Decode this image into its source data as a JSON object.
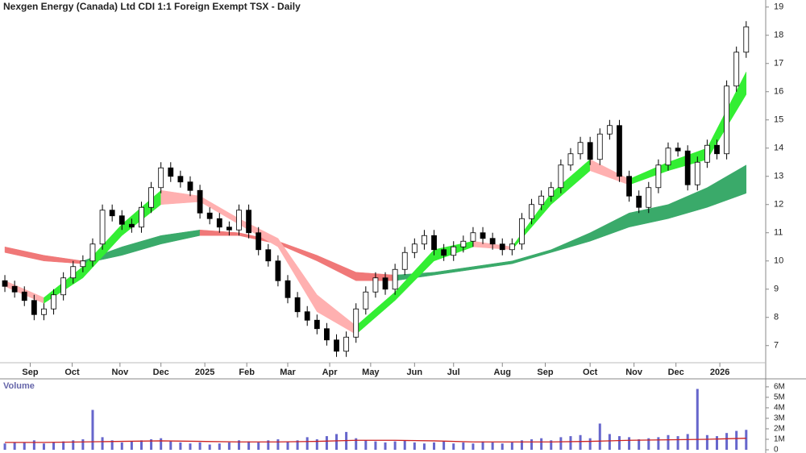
{
  "chart_data": [
    {
      "type": "candlestick",
      "title": "Nexgen Energy (Canada) Ltd CDI 1:1 Foreign Exempt TSX - Daily",
      "x": [
        0,
        1,
        2,
        3,
        4,
        5,
        6,
        7,
        8,
        9,
        10,
        11,
        12,
        13,
        14,
        15,
        16,
        17,
        18,
        19,
        20,
        21,
        22,
        23,
        24,
        25,
        26,
        27,
        28,
        29,
        30,
        31,
        32,
        33,
        34,
        35,
        36,
        37,
        38,
        39,
        40,
        41,
        42,
        43,
        44,
        45,
        46,
        47,
        48,
        49,
        50,
        51,
        52,
        53,
        54,
        55,
        56,
        57,
        58,
        59,
        60,
        61,
        62,
        63,
        64,
        65,
        66,
        67,
        68,
        69,
        70,
        71,
        72,
        73,
        74,
        75,
        76
      ],
      "open": [
        9.3,
        9.1,
        8.9,
        8.6,
        8.1,
        8.3,
        8.8,
        9.4,
        9.8,
        10.0,
        10.6,
        11.8,
        11.6,
        11.3,
        11.2,
        11.9,
        12.6,
        13.3,
        13.0,
        12.8,
        12.5,
        11.7,
        11.5,
        11.2,
        11.1,
        11.8,
        11.0,
        10.4,
        10.0,
        9.3,
        8.7,
        8.2,
        7.9,
        7.6,
        7.2,
        6.8,
        7.3,
        8.3,
        8.9,
        9.4,
        9.0,
        9.7,
        10.3,
        10.6,
        10.9,
        10.4,
        10.2,
        10.5,
        10.7,
        11.0,
        10.8,
        10.6,
        10.4,
        10.6,
        11.5,
        12.0,
        12.3,
        12.6,
        13.4,
        13.8,
        14.2,
        13.6,
        14.5,
        14.8,
        13.0,
        12.3,
        11.9,
        12.6,
        13.4,
        14.0,
        13.9,
        12.7,
        13.5,
        14.1,
        13.8,
        16.2,
        17.4
      ],
      "high": [
        9.5,
        9.3,
        9.1,
        8.8,
        8.5,
        9.0,
        9.6,
        10.0,
        10.2,
        10.8,
        12.0,
        12.0,
        11.8,
        11.5,
        12.1,
        12.8,
        13.5,
        13.5,
        13.2,
        13.0,
        12.7,
        11.9,
        11.7,
        11.4,
        12.0,
        12.0,
        11.2,
        10.6,
        10.2,
        9.5,
        8.9,
        8.4,
        8.1,
        7.8,
        7.4,
        7.5,
        8.5,
        9.1,
        9.6,
        9.6,
        9.9,
        10.5,
        10.8,
        11.1,
        11.1,
        10.6,
        10.7,
        10.9,
        11.2,
        11.2,
        11.0,
        10.8,
        10.8,
        11.7,
        12.2,
        12.5,
        12.8,
        13.6,
        14.0,
        14.4,
        14.4,
        14.7,
        15.0,
        15.0,
        13.2,
        12.5,
        12.8,
        13.6,
        14.2,
        14.2,
        14.1,
        13.7,
        14.3,
        14.3,
        16.4,
        17.6,
        18.5
      ],
      "low": [
        8.9,
        8.7,
        8.4,
        7.9,
        7.9,
        8.1,
        8.6,
        9.2,
        9.6,
        9.8,
        10.4,
        11.4,
        11.1,
        11.0,
        11.0,
        11.7,
        12.4,
        12.8,
        12.6,
        12.3,
        11.5,
        11.3,
        11.0,
        10.9,
        10.9,
        10.8,
        10.2,
        9.8,
        9.1,
        8.5,
        8.0,
        7.7,
        7.4,
        7.0,
        6.6,
        6.6,
        7.1,
        8.1,
        8.7,
        8.8,
        8.8,
        9.5,
        10.1,
        10.4,
        10.2,
        10.0,
        10.0,
        10.3,
        10.5,
        10.6,
        10.4,
        10.2,
        10.2,
        10.4,
        11.3,
        11.8,
        12.1,
        12.4,
        13.2,
        13.6,
        13.4,
        13.4,
        14.3,
        12.8,
        12.1,
        11.7,
        11.7,
        12.4,
        13.2,
        13.7,
        12.5,
        12.5,
        13.3,
        13.6,
        13.6,
        16.0,
        17.2
      ],
      "close": [
        9.1,
        8.9,
        8.6,
        8.1,
        8.3,
        8.8,
        9.4,
        9.8,
        10.0,
        10.6,
        11.8,
        11.6,
        11.3,
        11.2,
        11.9,
        12.6,
        13.3,
        13.0,
        12.8,
        12.5,
        11.7,
        11.5,
        11.2,
        11.1,
        11.8,
        11.0,
        10.4,
        10.0,
        9.3,
        8.7,
        8.2,
        7.9,
        7.6,
        7.2,
        6.8,
        7.3,
        8.3,
        8.9,
        9.4,
        9.0,
        9.7,
        10.3,
        10.6,
        10.9,
        10.4,
        10.2,
        10.5,
        10.7,
        11.0,
        10.8,
        10.6,
        10.4,
        10.6,
        11.5,
        12.0,
        12.3,
        12.6,
        13.4,
        13.8,
        14.2,
        13.6,
        14.5,
        14.8,
        13.0,
        12.3,
        11.9,
        12.6,
        13.4,
        14.0,
        13.9,
        12.7,
        13.5,
        14.1,
        13.8,
        16.2,
        17.4,
        18.3
      ],
      "ribbons": [
        {
          "x": [
            0,
            4,
            8,
            12,
            16,
            20,
            24,
            28,
            32,
            36,
            40,
            44,
            48,
            52,
            56,
            60,
            64,
            68,
            72,
            76
          ],
          "upper": [
            10.5,
            10.2,
            10.0,
            10.5,
            10.9,
            11.1,
            11.0,
            10.7,
            10.2,
            9.6,
            9.5,
            9.6,
            9.8,
            10.0,
            10.4,
            11.0,
            11.7,
            12.0,
            12.6,
            13.4
          ],
          "lower": [
            10.3,
            10.0,
            9.9,
            10.2,
            10.6,
            10.9,
            10.9,
            10.6,
            10.0,
            9.3,
            9.3,
            9.5,
            9.7,
            9.9,
            10.3,
            10.7,
            11.2,
            11.5,
            11.9,
            12.4
          ],
          "up_color": "#3aaa6a",
          "down_color": "#f07878"
        },
        {
          "x": [
            0,
            4,
            8,
            12,
            16,
            20,
            24,
            28,
            32,
            36,
            40,
            44,
            48,
            52,
            56,
            60,
            64,
            68,
            72,
            76
          ],
          "upper": [
            9.3,
            8.7,
            9.8,
            11.3,
            12.5,
            12.3,
            11.5,
            10.8,
            8.8,
            7.7,
            8.9,
            10.4,
            10.7,
            10.5,
            12.4,
            13.6,
            12.9,
            13.5,
            14.0,
            16.7
          ],
          "lower": [
            9.1,
            8.5,
            9.4,
            10.9,
            12.0,
            12.1,
            11.3,
            10.5,
            8.2,
            7.4,
            8.6,
            10.0,
            10.5,
            10.4,
            12.0,
            13.2,
            12.7,
            13.2,
            13.6,
            15.9
          ],
          "up_color": "#33ee33",
          "down_color": "#ffb0b0"
        }
      ],
      "up_color": "#ffffff",
      "down_color": "#000000",
      "xlim": [
        -0.5,
        78
      ],
      "xticks": [
        {
          "value": 2.6,
          "label": "Sep"
        },
        {
          "value": 6.9,
          "label": "Oct"
        },
        {
          "value": 11.8,
          "label": "Nov"
        },
        {
          "value": 16,
          "label": "Dec"
        },
        {
          "value": 20.5,
          "label": "2025"
        },
        {
          "value": 24.8,
          "label": "Feb"
        },
        {
          "value": 29,
          "label": "Mar"
        },
        {
          "value": 33.3,
          "label": "Apr"
        },
        {
          "value": 37.5,
          "label": "May"
        },
        {
          "value": 42,
          "label": "Jun"
        },
        {
          "value": 46,
          "label": "Jul"
        },
        {
          "value": 51,
          "label": "Aug"
        },
        {
          "value": 55.4,
          "label": "Sep"
        },
        {
          "value": 60,
          "label": "Oct"
        },
        {
          "value": 64.5,
          "label": "Nov"
        },
        {
          "value": 68.8,
          "label": "Dec"
        },
        {
          "value": 73.3,
          "label": "2026"
        }
      ],
      "ylim": [
        6.45,
        19.25
      ],
      "yticks": [
        7,
        8,
        9,
        10,
        11,
        12,
        13,
        14,
        15,
        16,
        17,
        18,
        19
      ]
    },
    {
      "type": "bar",
      "title": "Volume",
      "x": [
        0,
        1,
        2,
        3,
        4,
        5,
        6,
        7,
        8,
        9,
        10,
        11,
        12,
        13,
        14,
        15,
        16,
        17,
        18,
        19,
        20,
        21,
        22,
        23,
        24,
        25,
        26,
        27,
        28,
        29,
        30,
        31,
        32,
        33,
        34,
        35,
        36,
        37,
        38,
        39,
        40,
        41,
        42,
        43,
        44,
        45,
        46,
        47,
        48,
        49,
        50,
        51,
        52,
        53,
        54,
        55,
        56,
        57,
        58,
        59,
        60,
        61,
        62,
        63,
        64,
        65,
        66,
        67,
        68,
        69,
        70,
        71,
        72,
        73,
        74,
        75,
        76
      ],
      "values": [
        600000,
        700000,
        650000,
        900000,
        600000,
        700000,
        800000,
        900000,
        1000000,
        3800000,
        1200000,
        900000,
        700000,
        800000,
        900000,
        1000000,
        1100000,
        800000,
        700000,
        600000,
        700000,
        500000,
        600000,
        700000,
        900000,
        800000,
        700000,
        900000,
        1000000,
        800000,
        900000,
        1200000,
        1000000,
        1300000,
        1500000,
        1700000,
        1100000,
        900000,
        800000,
        700000,
        800000,
        900000,
        700000,
        600000,
        700000,
        800000,
        600000,
        700000,
        600000,
        800000,
        700000,
        600000,
        700000,
        900000,
        1000000,
        1100000,
        900000,
        1200000,
        1300000,
        1400000,
        1100000,
        2500000,
        1500000,
        1300000,
        1200000,
        1000000,
        1100000,
        1200000,
        1400000,
        1300000,
        1500000,
        5800000,
        1400000,
        1300000,
        1600000,
        1800000,
        1900000
      ],
      "color": "#6666cc",
      "average": {
        "x": [
          0,
          4,
          8,
          12,
          16,
          20,
          24,
          28,
          32,
          36,
          40,
          44,
          48,
          52,
          56,
          60,
          64,
          68,
          72,
          76
        ],
        "values": [
          700000,
          700000,
          750000,
          800000,
          850000,
          800000,
          750000,
          750000,
          800000,
          900000,
          900000,
          850000,
          750000,
          750000,
          750000,
          800000,
          900000,
          950000,
          1000000,
          1100000
        ],
        "color": "#cc2222"
      },
      "xlim": [
        -0.5,
        78
      ],
      "ylim": [
        0,
        6300000
      ],
      "yticks": [
        0,
        {
          "value": 1000000,
          "label": "1M"
        },
        {
          "value": 2000000,
          "label": "2M"
        },
        {
          "value": 3000000,
          "label": "3M"
        },
        {
          "value": 4000000,
          "label": "4M"
        },
        {
          "value": 5000000,
          "label": "5M"
        },
        {
          "value": 6000000,
          "label": "6M"
        }
      ]
    }
  ]
}
